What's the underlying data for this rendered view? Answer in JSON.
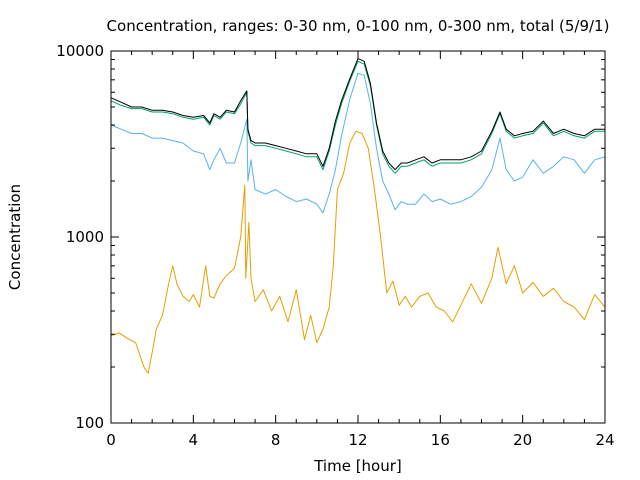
{
  "chart_data": {
    "type": "line",
    "title": "Concentration, ranges: 0-30 nm, 0-100 nm, 0-300 nm, total (5/9/1)",
    "xlabel": "Time [hour]",
    "ylabel": "Concentration",
    "xlim": [
      0,
      24
    ],
    "ylim": [
      100,
      10000
    ],
    "yscale": "log",
    "grid": false,
    "legend": "none",
    "xticks": [
      0,
      4,
      8,
      12,
      16,
      20,
      24
    ],
    "xtick_labels": [
      "0",
      "4",
      "8",
      "12",
      "16",
      "20",
      "24"
    ],
    "yticks": [
      100,
      1000,
      10000
    ],
    "ytick_labels": [
      "100",
      "1000",
      "10000"
    ],
    "series": [
      {
        "color": "#e69f00",
        "x": [
          0,
          0.4,
          0.8,
          1.2,
          1.6,
          1.8,
          2.0,
          2.2,
          2.5,
          2.8,
          3.0,
          3.2,
          3.5,
          3.8,
          4.0,
          4.3,
          4.6,
          4.8,
          5.0,
          5.3,
          5.6,
          6.0,
          6.3,
          6.5,
          6.55,
          6.7,
          6.8,
          7.0,
          7.4,
          7.8,
          8.2,
          8.6,
          9.0,
          9.4,
          9.7,
          10.0,
          10.3,
          10.6,
          10.8,
          11.0,
          11.3,
          11.6,
          11.9,
          12.2,
          12.5,
          12.8,
          13.1,
          13.4,
          13.7,
          14.0,
          14.3,
          14.6,
          15.0,
          15.4,
          15.8,
          16.2,
          16.6,
          17.0,
          17.5,
          18.0,
          18.5,
          18.8,
          19.2,
          19.6,
          20.0,
          20.5,
          21.0,
          21.5,
          22.0,
          22.5,
          23.0,
          23.5,
          24.0
        ],
        "y": [
          295,
          305,
          285,
          270,
          200,
          185,
          240,
          320,
          380,
          560,
          700,
          560,
          480,
          450,
          490,
          420,
          700,
          480,
          470,
          560,
          620,
          680,
          1000,
          1900,
          600,
          1200,
          600,
          450,
          520,
          400,
          480,
          350,
          520,
          280,
          380,
          270,
          320,
          420,
          700,
          1800,
          2200,
          3200,
          3700,
          3600,
          3000,
          1800,
          1000,
          500,
          580,
          430,
          480,
          420,
          480,
          500,
          420,
          400,
          350,
          430,
          560,
          440,
          600,
          880,
          560,
          700,
          500,
          570,
          480,
          530,
          450,
          420,
          360,
          490,
          420
        ]
      },
      {
        "color": "#56b4e9",
        "x": [
          0,
          0.5,
          1.0,
          1.5,
          2.0,
          2.5,
          3.0,
          3.5,
          4.0,
          4.5,
          4.8,
          5.0,
          5.3,
          5.6,
          6.0,
          6.3,
          6.6,
          6.65,
          6.8,
          7.0,
          7.5,
          8.0,
          8.5,
          9.0,
          9.5,
          10.0,
          10.3,
          10.6,
          10.9,
          11.2,
          11.6,
          12.0,
          12.3,
          12.6,
          12.9,
          13.2,
          13.5,
          13.8,
          14.1,
          14.4,
          14.8,
          15.2,
          15.6,
          16.0,
          16.5,
          17.0,
          17.5,
          18.0,
          18.5,
          18.9,
          19.2,
          19.6,
          20.0,
          20.5,
          21.0,
          21.5,
          22.0,
          22.5,
          23.0,
          23.5,
          24.0
        ],
        "y": [
          4000,
          3800,
          3600,
          3600,
          3400,
          3400,
          3300,
          3200,
          2900,
          2800,
          2300,
          2600,
          3000,
          2500,
          2500,
          3200,
          4300,
          2000,
          2600,
          1800,
          1700,
          1800,
          1650,
          1550,
          1600,
          1500,
          1350,
          1700,
          2300,
          3500,
          5500,
          7600,
          7400,
          5200,
          3000,
          2000,
          1700,
          1400,
          1550,
          1500,
          1500,
          1700,
          1550,
          1600,
          1500,
          1550,
          1650,
          1850,
          2300,
          3400,
          2300,
          2000,
          2100,
          2600,
          2200,
          2400,
          2700,
          2600,
          2200,
          2600,
          2700
        ]
      },
      {
        "color": "#009e73",
        "x": [
          0,
          0.5,
          1.0,
          1.5,
          2.0,
          2.5,
          3.0,
          3.5,
          4.0,
          4.5,
          4.8,
          5.0,
          5.3,
          5.6,
          6.0,
          6.3,
          6.6,
          6.65,
          6.8,
          7.0,
          7.5,
          8.0,
          8.5,
          9.0,
          9.5,
          10.0,
          10.3,
          10.6,
          10.9,
          11.2,
          11.6,
          12.0,
          12.3,
          12.6,
          12.9,
          13.2,
          13.5,
          13.8,
          14.1,
          14.4,
          14.8,
          15.2,
          15.6,
          16.0,
          16.5,
          17.0,
          17.5,
          18.0,
          18.5,
          18.9,
          19.2,
          19.6,
          20.0,
          20.5,
          21.0,
          21.5,
          22.0,
          22.5,
          23.0,
          23.5,
          24.0
        ],
        "y": [
          5400,
          5100,
          4900,
          4900,
          4700,
          4700,
          4600,
          4400,
          4300,
          4400,
          4000,
          4500,
          4300,
          4700,
          4600,
          5200,
          6000,
          3700,
          3200,
          3100,
          3100,
          3000,
          2900,
          2800,
          2700,
          2700,
          2300,
          2900,
          4000,
          5200,
          6900,
          8800,
          8500,
          6500,
          4000,
          2800,
          2400,
          2200,
          2400,
          2400,
          2500,
          2600,
          2400,
          2500,
          2500,
          2500,
          2600,
          2800,
          3600,
          4600,
          3700,
          3400,
          3500,
          3600,
          4100,
          3500,
          3700,
          3500,
          3400,
          3700,
          3700
        ]
      },
      {
        "color": "#000000",
        "x": [
          0,
          0.5,
          1.0,
          1.5,
          2.0,
          2.5,
          3.0,
          3.5,
          4.0,
          4.5,
          4.8,
          5.0,
          5.3,
          5.6,
          6.0,
          6.3,
          6.6,
          6.65,
          6.8,
          7.0,
          7.5,
          8.0,
          8.5,
          9.0,
          9.5,
          10.0,
          10.3,
          10.6,
          10.9,
          11.2,
          11.6,
          12.0,
          12.3,
          12.6,
          12.9,
          13.2,
          13.5,
          13.8,
          14.1,
          14.4,
          14.8,
          15.2,
          15.6,
          16.0,
          16.5,
          17.0,
          17.5,
          18.0,
          18.5,
          18.9,
          19.2,
          19.6,
          20.0,
          20.5,
          21.0,
          21.5,
          22.0,
          22.5,
          23.0,
          23.5,
          24.0
        ],
        "y": [
          5600,
          5300,
          5000,
          5000,
          4800,
          4800,
          4700,
          4500,
          4400,
          4500,
          4100,
          4600,
          4400,
          4800,
          4700,
          5400,
          6100,
          3800,
          3300,
          3200,
          3200,
          3100,
          3000,
          2900,
          2800,
          2800,
          2400,
          3000,
          4200,
          5400,
          7100,
          9100,
          8800,
          6700,
          4100,
          2900,
          2500,
          2300,
          2500,
          2500,
          2600,
          2700,
          2500,
          2600,
          2600,
          2600,
          2700,
          2900,
          3700,
          4700,
          3800,
          3500,
          3600,
          3700,
          4200,
          3600,
          3800,
          3600,
          3500,
          3800,
          3800
        ]
      }
    ]
  }
}
